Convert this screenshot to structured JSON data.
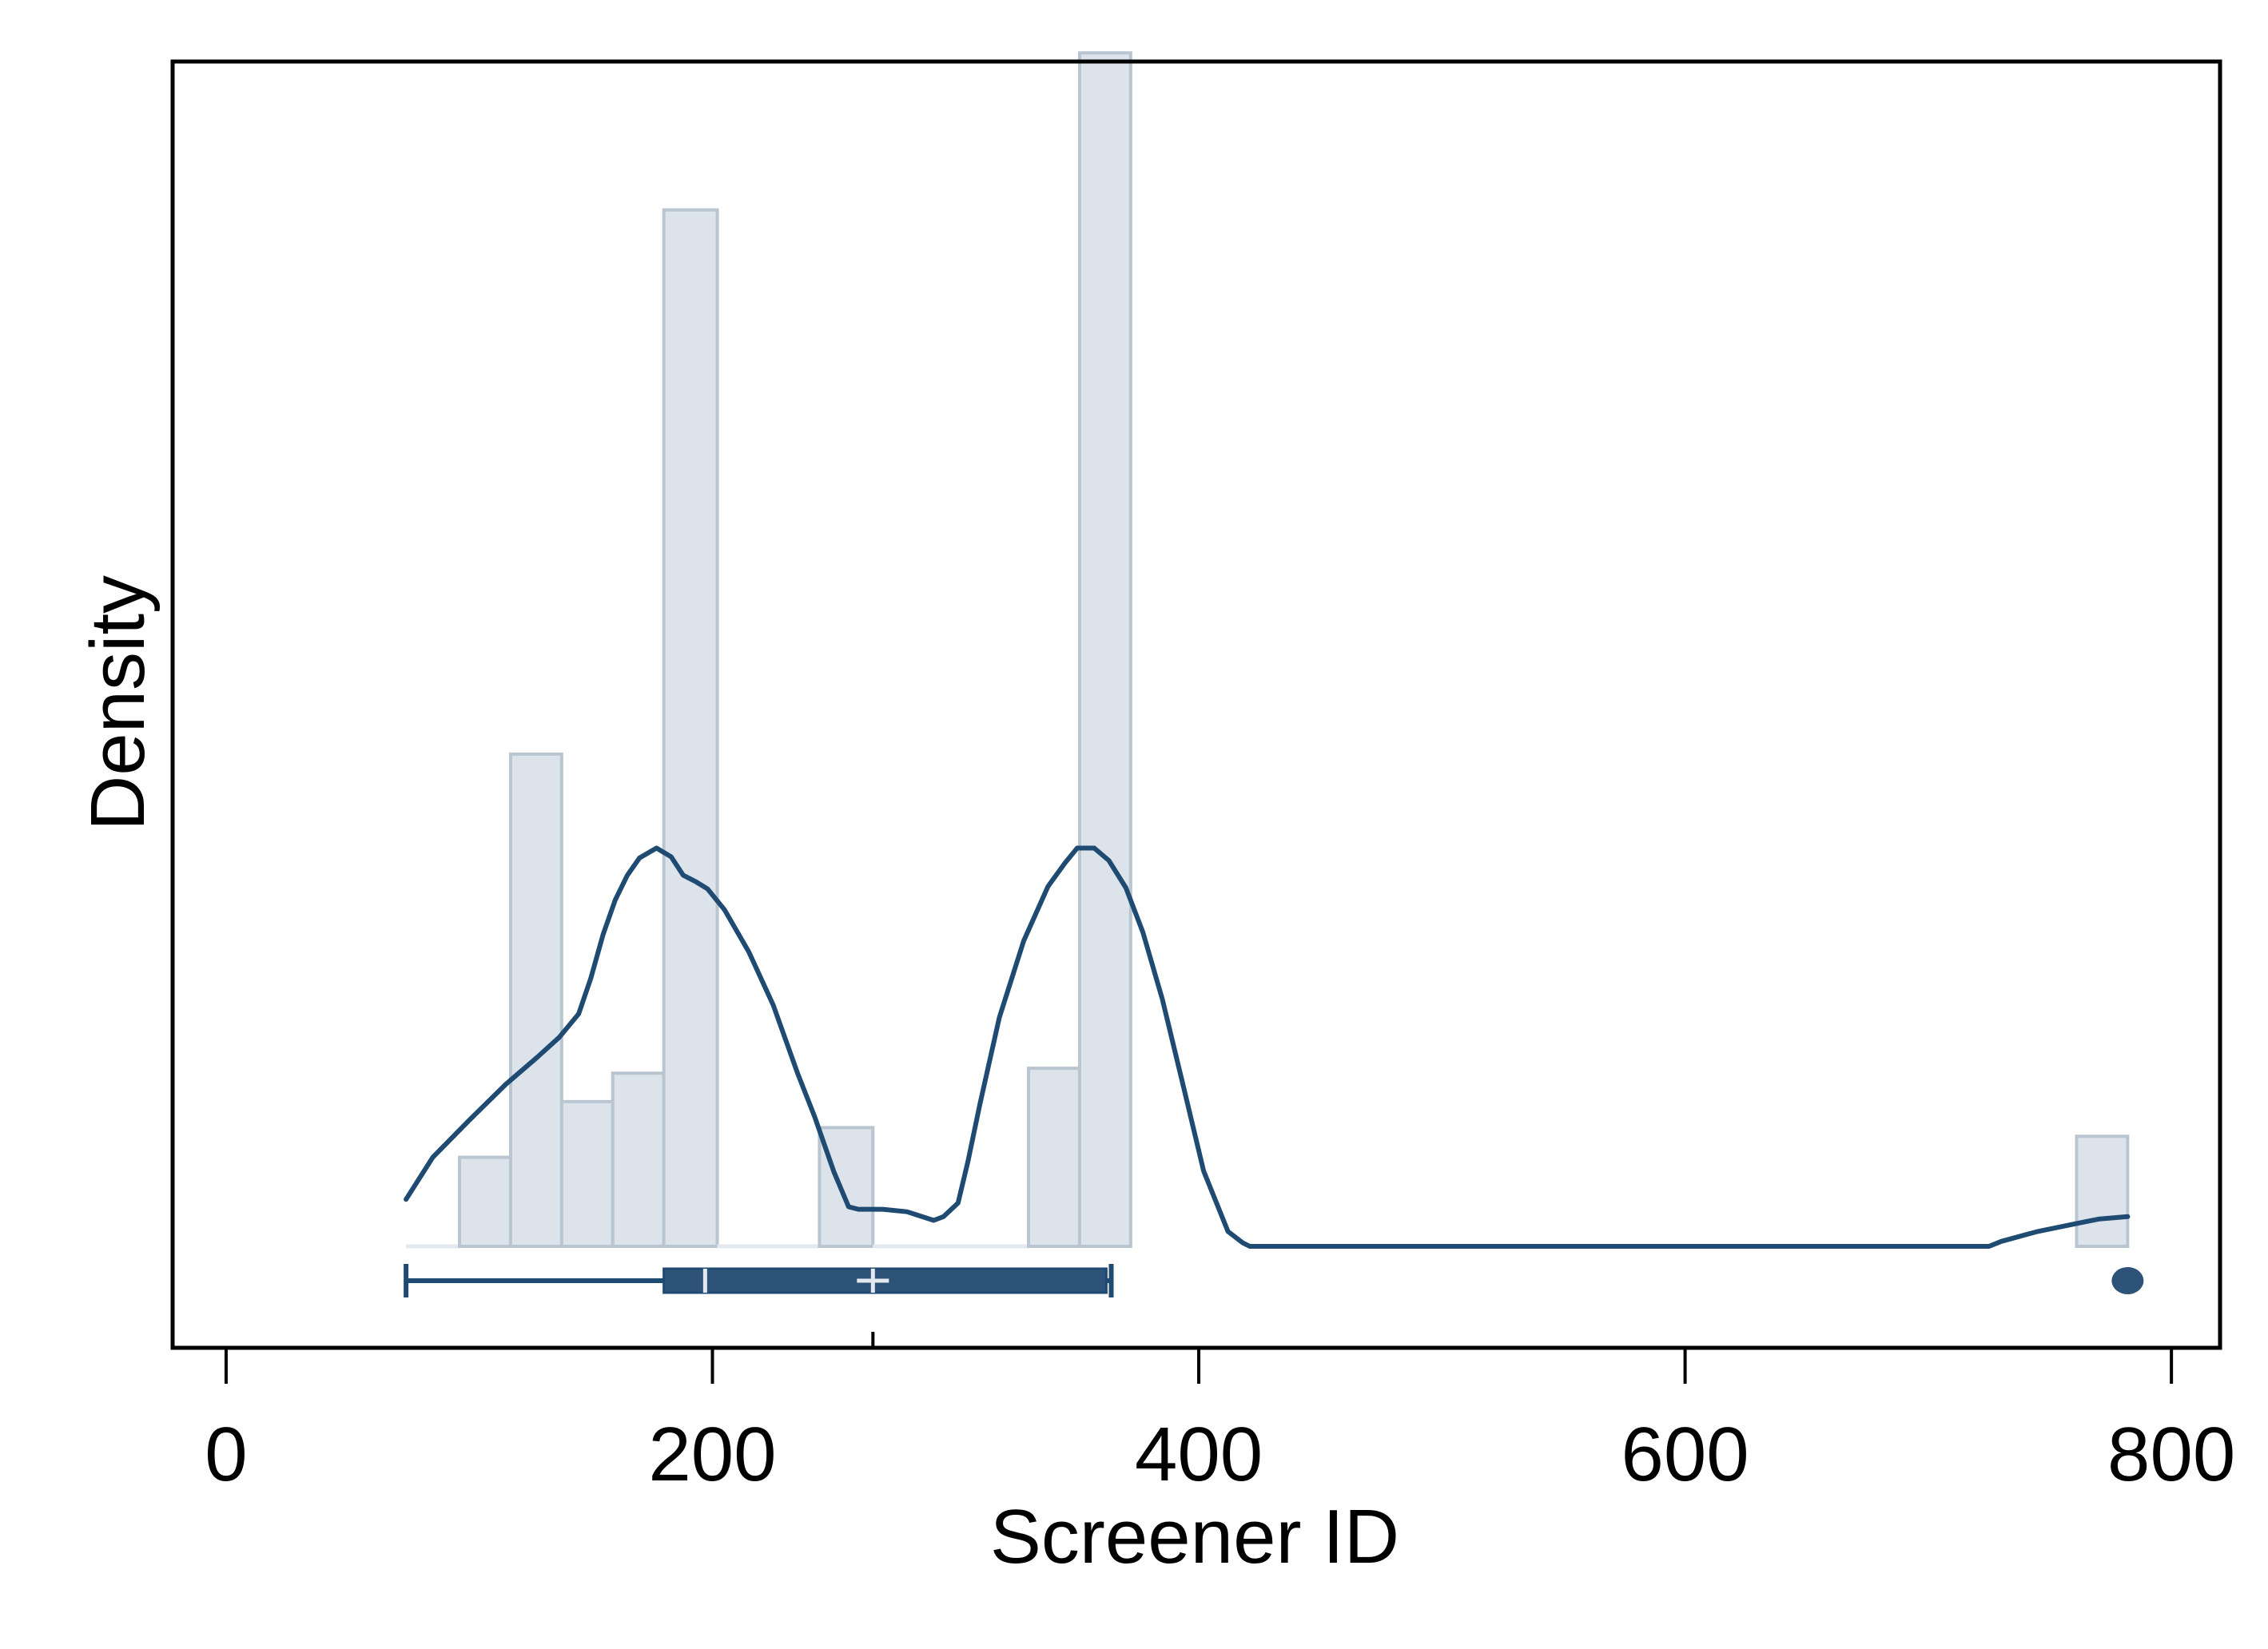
{
  "chart_data": {
    "type": "bar",
    "title": "",
    "xlabel": "Screener ID",
    "ylabel": "Density",
    "xlim": [
      -22,
      820
    ],
    "ylim": [
      0,
      1.0
    ],
    "xticks": [
      {
        "value": 0,
        "label": "0"
      },
      {
        "value": 200,
        "label": "200"
      },
      {
        "value": 400,
        "label": "400"
      },
      {
        "value": 600,
        "label": "600"
      },
      {
        "value": 800,
        "label": "800"
      }
    ],
    "yaxis_tick_labels_shown": false,
    "grid": false,
    "legend": "none",
    "colors": {
      "bar_fill": "#dce3ea",
      "bar_stroke": "#b9c6d2",
      "density_line": "#1f4a72",
      "box_fill": "#2d5379",
      "box_edge": "#1f4a72",
      "median_marker": "#e4e9ef"
    },
    "histogram": {
      "bins": [
        {
          "x0": 74,
          "x1": 96,
          "density": 0.0
        },
        {
          "x0": 96,
          "x1": 117,
          "density": 0.072
        },
        {
          "x0": 117,
          "x1": 138,
          "density": 0.398
        },
        {
          "x0": 138,
          "x1": 159,
          "density": 0.117
        },
        {
          "x0": 159,
          "x1": 180,
          "density": 0.14
        },
        {
          "x0": 180,
          "x1": 202,
          "density": 0.838
        },
        {
          "x0": 202,
          "x1": 223,
          "density": 0.0
        },
        {
          "x0": 223,
          "x1": 244,
          "density": 0.0
        },
        {
          "x0": 244,
          "x1": 266,
          "density": 0.096
        },
        {
          "x0": 266,
          "x1": 287,
          "density": 0.0
        },
        {
          "x0": 287,
          "x1": 308,
          "density": 0.0
        },
        {
          "x0": 308,
          "x1": 330,
          "density": 0.0
        },
        {
          "x0": 330,
          "x1": 351,
          "density": 0.144
        },
        {
          "x0": 351,
          "x1": 372,
          "density": 0.965
        },
        {
          "x0": 761,
          "x1": 782,
          "density": 0.089
        }
      ]
    },
    "density_curve": {
      "x": [
        74,
        85,
        100,
        115,
        128,
        137,
        145,
        150,
        155,
        160,
        165,
        170,
        177,
        183,
        188,
        193,
        198,
        205,
        215,
        225,
        235,
        242,
        250,
        256,
        260,
        270,
        280,
        291,
        295,
        301,
        305,
        310,
        318,
        328,
        338,
        345,
        350,
        357,
        363,
        370,
        377,
        385,
        393,
        402,
        412,
        418,
        421,
        430,
        500,
        600,
        700,
        725,
        730,
        745,
        760,
        770,
        782
      ],
      "y": [
        0.038,
        0.072,
        0.102,
        0.131,
        0.153,
        0.169,
        0.188,
        0.217,
        0.252,
        0.28,
        0.3,
        0.314,
        0.322,
        0.315,
        0.3,
        0.295,
        0.289,
        0.272,
        0.238,
        0.195,
        0.14,
        0.105,
        0.06,
        0.032,
        0.03,
        0.03,
        0.028,
        0.021,
        0.024,
        0.035,
        0.068,
        0.115,
        0.185,
        0.247,
        0.291,
        0.31,
        0.322,
        0.322,
        0.312,
        0.29,
        0.254,
        0.2,
        0.135,
        0.061,
        0.012,
        0.003,
        0.0,
        0.0,
        0.0,
        0.0,
        0.0,
        0.0,
        0.004,
        0.012,
        0.018,
        0.022,
        0.024
      ]
    },
    "boxplot": {
      "whisker_low": 74,
      "q1": 180,
      "median": 197,
      "mean": 266,
      "q3": 362,
      "whisker_high": 364,
      "outliers": [
        782
      ]
    }
  }
}
